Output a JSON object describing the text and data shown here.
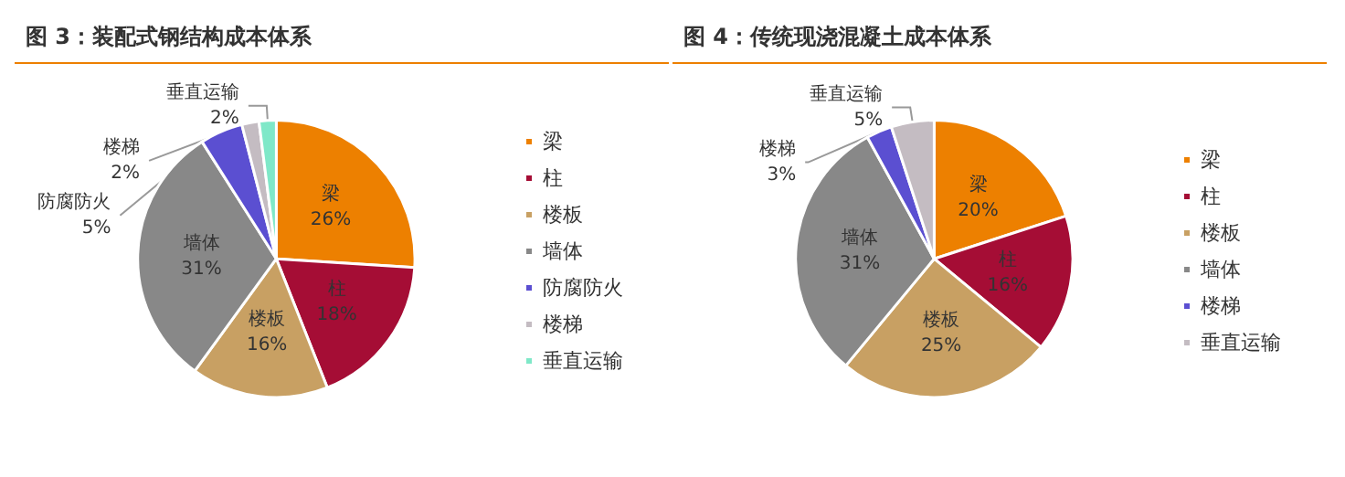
{
  "chart_data": [
    {
      "type": "pie",
      "title": "图 3：装配式钢结构成本体系",
      "categories": [
        "梁",
        "柱",
        "楼板",
        "墙体",
        "防腐防火",
        "楼梯",
        "垂直运输"
      ],
      "values": [
        26,
        18,
        16,
        31,
        5,
        2,
        2
      ],
      "colors": [
        "#ed8000",
        "#a50d35",
        "#c8a063",
        "#888888",
        "#5b4fd1",
        "#c4bcc2",
        "#7fe8c8"
      ],
      "value_labels": [
        "26%",
        "18%",
        "16%",
        "31%",
        "5%",
        "2%",
        "2%"
      ],
      "legend": "right"
    },
    {
      "type": "pie",
      "title": "图 4：传统现浇混凝土成本体系",
      "categories": [
        "梁",
        "柱",
        "楼板",
        "墙体",
        "楼梯",
        "垂直运输"
      ],
      "values": [
        20,
        16,
        25,
        31,
        3,
        5
      ],
      "colors": [
        "#ed8000",
        "#a50d35",
        "#c8a063",
        "#888888",
        "#5b4fd1",
        "#c4bcc2"
      ],
      "value_labels": [
        "20%",
        "16%",
        "25%",
        "31%",
        "3%",
        "5%"
      ],
      "legend": "right"
    }
  ]
}
